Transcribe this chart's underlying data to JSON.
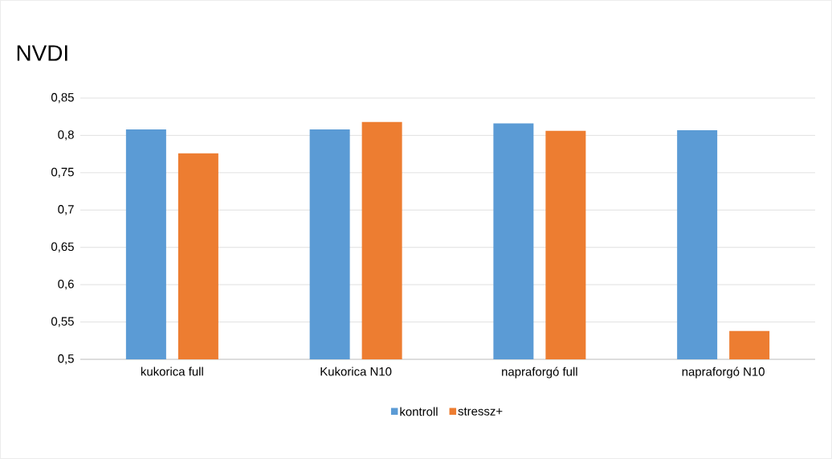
{
  "chart_data": {
    "type": "bar",
    "title": "NVDI",
    "categories": [
      "kukorica full",
      "Kukorica N10",
      "napraforgó full",
      "napraforgó N10"
    ],
    "series": [
      {
        "name": "kontroll",
        "color": "#5b9bd5",
        "values": [
          0.808,
          0.808,
          0.816,
          0.807
        ]
      },
      {
        "name": "stressz+",
        "color": "#ed7d31",
        "values": [
          0.776,
          0.818,
          0.806,
          0.538
        ]
      }
    ],
    "ylim": [
      0.5,
      0.85
    ],
    "yticks": [
      {
        "value": 0.5,
        "label": "0,5"
      },
      {
        "value": 0.55,
        "label": "0,55"
      },
      {
        "value": 0.6,
        "label": "0,6"
      },
      {
        "value": 0.65,
        "label": "0,65"
      },
      {
        "value": 0.7,
        "label": "0,7"
      },
      {
        "value": 0.75,
        "label": "0,75"
      },
      {
        "value": 0.8,
        "label": "0,8"
      },
      {
        "value": 0.85,
        "label": "0,85"
      }
    ],
    "grid": "y",
    "legend": "bottom"
  }
}
